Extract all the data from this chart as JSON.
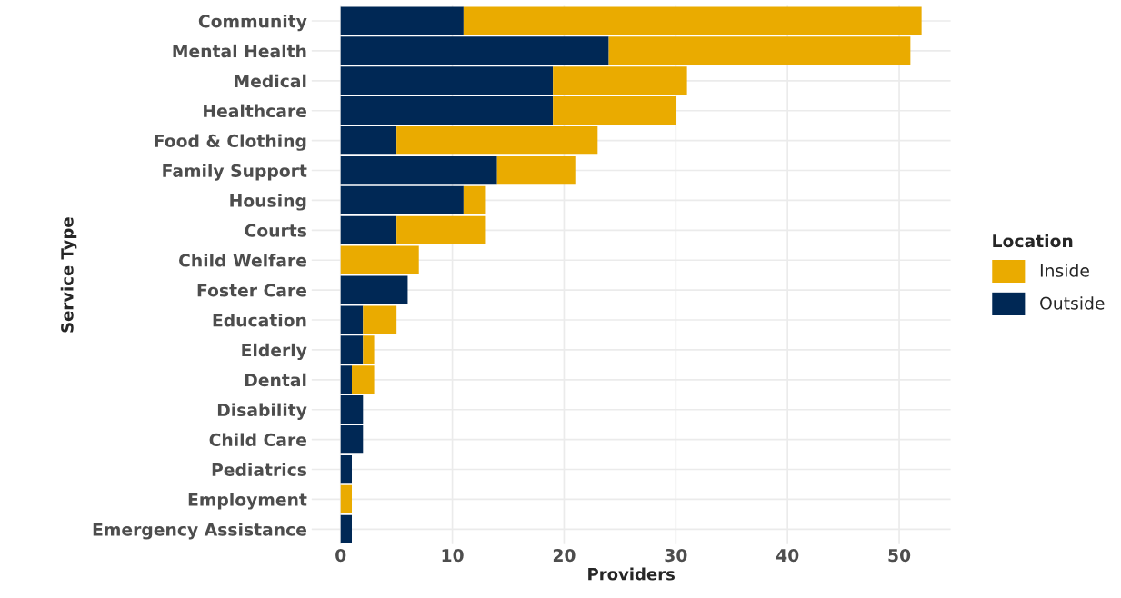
{
  "chart_data": {
    "type": "bar",
    "orientation": "horizontal",
    "stacked": true,
    "xlabel": "Providers",
    "ylabel": "Service Type",
    "legend_title": "Location",
    "legend": "right",
    "grid": true,
    "categories": [
      "Community",
      "Mental Health",
      "Medical",
      "Healthcare",
      "Food & Clothing",
      "Family Support",
      "Housing",
      "Courts",
      "Child Welfare",
      "Foster Care",
      "Education",
      "Elderly",
      "Dental",
      "Disability",
      "Child Care",
      "Pediatrics",
      "Employment",
      "Emergency Assistance"
    ],
    "series": [
      {
        "name": "Outside",
        "color": "#002855",
        "values": [
          11,
          24,
          19,
          19,
          5,
          14,
          11,
          5,
          0,
          6,
          2,
          2,
          1,
          2,
          2,
          1,
          0,
          1
        ]
      },
      {
        "name": "Inside",
        "color": "#eaab00",
        "values": [
          41,
          27,
          12,
          11,
          18,
          7,
          2,
          8,
          7,
          0,
          3,
          1,
          2,
          0,
          0,
          0,
          1,
          0
        ]
      }
    ],
    "xlim": [
      -2.6,
      54.6
    ],
    "xticks": [
      0,
      10,
      20,
      30,
      40,
      50
    ]
  }
}
